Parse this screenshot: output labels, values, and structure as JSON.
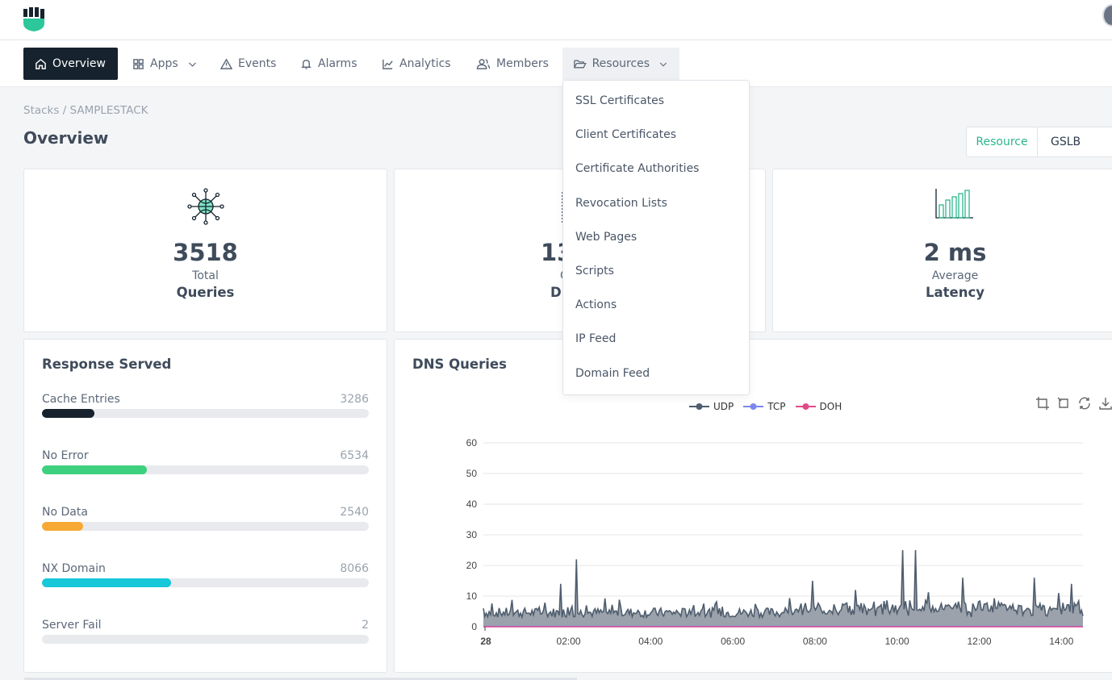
{
  "nav": {
    "items": [
      {
        "label": "Overview"
      },
      {
        "label": "Apps"
      },
      {
        "label": "Events"
      },
      {
        "label": "Alarms"
      },
      {
        "label": "Analytics"
      },
      {
        "label": "Members"
      },
      {
        "label": "Resources"
      }
    ]
  },
  "breadcrumb": "Stacks / SAMPLESTACK",
  "page_title": "Overview",
  "resource_selector": {
    "label": "Resource",
    "value": "GSLB"
  },
  "stats": [
    {
      "value": "3518",
      "sub": "Total",
      "name": "Queries",
      "icon": "network-globe-icon"
    },
    {
      "value": "13",
      "sub": "C",
      "name": "Dr",
      "icon": "dotted-line-icon"
    },
    {
      "value": "2 ms",
      "sub": "Average",
      "name": "Latency",
      "icon": "bar-chart-icon"
    }
  ],
  "response_served": {
    "title": "Response Served",
    "rows": [
      {
        "name": "Cache Entries",
        "count": "3286",
        "fraction": 0.16,
        "color": "#16232e"
      },
      {
        "name": "No Error",
        "count": "6534",
        "fraction": 0.32,
        "color": "#3dd07f"
      },
      {
        "name": "No Data",
        "count": "2540",
        "fraction": 0.125,
        "color": "#f6a935"
      },
      {
        "name": "NX Domain",
        "count": "8066",
        "fraction": 0.395,
        "color": "#16c8d8"
      },
      {
        "name": "Server Fail",
        "count": "2",
        "fraction": 0,
        "color": "#16232e"
      }
    ]
  },
  "dns_chart": {
    "title": "DNS Queries",
    "legend": [
      {
        "name": "UDP",
        "color": "#4f5d6e"
      },
      {
        "name": "TCP",
        "color": "#7a88ee"
      },
      {
        "name": "DOH",
        "color": "#e04a8a"
      }
    ],
    "toolbox": [
      "zoom-icon",
      "zoom-reset-icon",
      "restore-icon",
      "download-icon"
    ]
  },
  "chart_data": {
    "type": "area",
    "title": "DNS Queries",
    "xlabel": "",
    "ylabel": "",
    "ylim": [
      0,
      60
    ],
    "yticks": [
      "0",
      "10",
      "20",
      "30",
      "40",
      "50",
      "60"
    ],
    "xticks": [
      "28",
      "02:00",
      "04:00",
      "06:00",
      "08:00",
      "10:00",
      "12:00",
      "14:00"
    ],
    "grid": true,
    "legend_position": "top-center",
    "series": [
      {
        "name": "UDP",
        "color": "#4f5d6e",
        "base": 3,
        "spikes": [
          [
            0.0,
            6
          ],
          [
            0.13,
            14
          ],
          [
            0.155,
            22
          ],
          [
            0.7,
            25
          ],
          [
            0.72,
            25
          ],
          [
            0.55,
            15
          ],
          [
            0.62,
            12
          ],
          [
            0.8,
            16
          ],
          [
            0.92,
            16
          ],
          [
            0.98,
            14
          ],
          [
            0.96,
            11
          ]
        ]
      },
      {
        "name": "TCP",
        "color": "#7a88ee",
        "base": 0.1
      },
      {
        "name": "DOH",
        "color": "#e04a8a",
        "base": 0
      }
    ]
  },
  "resources_menu": {
    "items": [
      "SSL Certificates",
      "Client Certificates",
      "Certificate Authorities",
      "Revocation Lists",
      "Web Pages",
      "Scripts",
      "Actions",
      "IP Feed",
      "Domain Feed"
    ]
  }
}
